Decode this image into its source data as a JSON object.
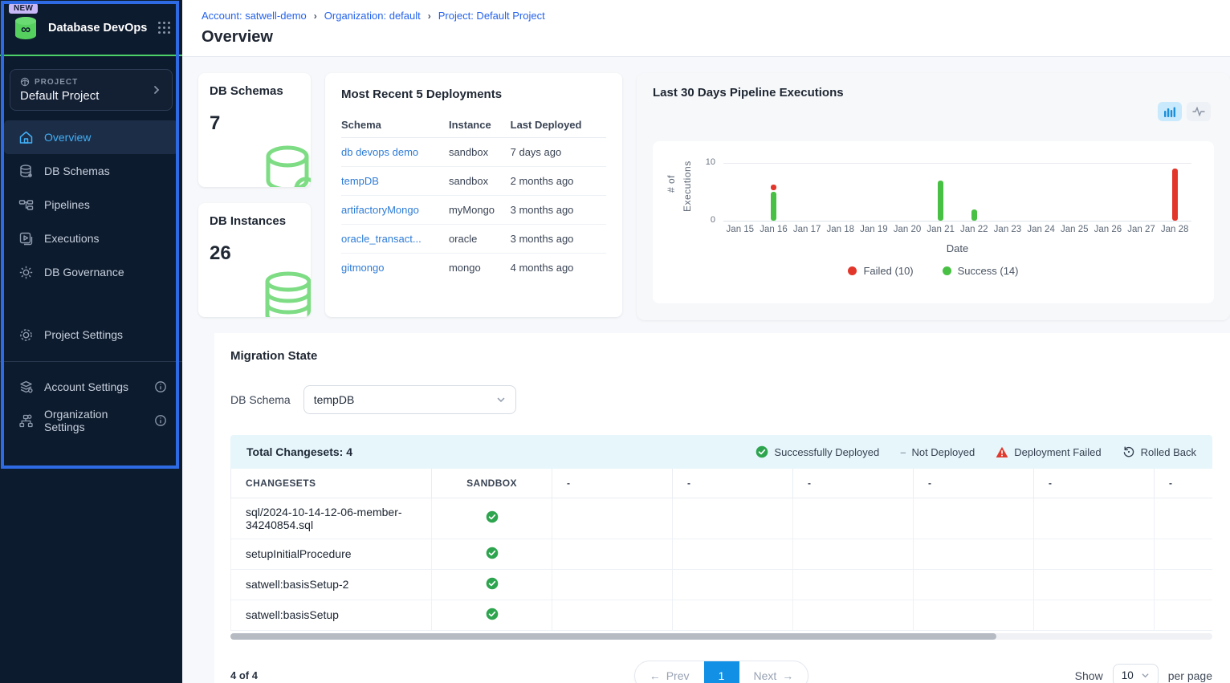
{
  "sidebar": {
    "badge": "NEW",
    "app_title": "Database DevOps",
    "project_label": "PROJECT",
    "project_name": "Default Project",
    "nav": [
      {
        "label": "Overview"
      },
      {
        "label": "DB Schemas"
      },
      {
        "label": "Pipelines"
      },
      {
        "label": "Executions"
      },
      {
        "label": "DB Governance"
      }
    ],
    "secondary": [
      {
        "label": "Project Settings"
      }
    ],
    "tertiary": [
      {
        "label": "Account Settings"
      },
      {
        "label": "Organization Settings"
      }
    ]
  },
  "breadcrumb": {
    "items": [
      "Account: satwell-demo",
      "Organization: default",
      "Project: Default Project"
    ]
  },
  "page_title": "Overview",
  "stats": [
    {
      "label": "DB Schemas",
      "value": "7"
    },
    {
      "label": "DB Instances",
      "value": "26"
    }
  ],
  "deployments": {
    "title": "Most Recent 5 Deployments",
    "columns": [
      "Schema",
      "Instance",
      "Last Deployed"
    ],
    "rows": [
      [
        "db devops demo",
        "sandbox",
        "7 days ago"
      ],
      [
        "tempDB",
        "sandbox",
        "2 months ago"
      ],
      [
        "artifactoryMongo",
        "myMongo",
        "3 months ago"
      ],
      [
        "oracle_transact...",
        "oracle",
        "3 months ago"
      ],
      [
        "gitmongo",
        "mongo",
        "4 months ago"
      ]
    ]
  },
  "chart_data": {
    "type": "bar",
    "title": "Last 30 Days Pipeline Executions",
    "x": [
      "Jan 15",
      "Jan 16",
      "Jan 17",
      "Jan 18",
      "Jan 19",
      "Jan 20",
      "Jan 21",
      "Jan 22",
      "Jan 23",
      "Jan 24",
      "Jan 25",
      "Jan 26",
      "Jan 27",
      "Jan 28"
    ],
    "series": [
      {
        "name": "Failed",
        "color": "#e2362b",
        "values": [
          0,
          1,
          0,
          0,
          0,
          0,
          0,
          0,
          0,
          0,
          0,
          0,
          0,
          9
        ]
      },
      {
        "name": "Success",
        "color": "#47c043",
        "values": [
          0,
          5,
          0,
          0,
          0,
          0,
          7,
          2,
          0,
          0,
          0,
          0,
          0,
          0
        ]
      }
    ],
    "stacked": true,
    "xlabel": "Date",
    "ylabel": "# of Executions",
    "ylim": [
      0,
      10
    ],
    "ytick_top": "10",
    "ytick_bottom": "0",
    "grid": "top-line-only",
    "legend_position": "bottom",
    "legend": [
      {
        "label": "Failed (10)",
        "color": "#e2362b"
      },
      {
        "label": "Success (14)",
        "color": "#47c043"
      }
    ]
  },
  "migration": {
    "title": "Migration State",
    "schema_label": "DB Schema",
    "schema_value": "tempDB",
    "total_label": "Total Changesets: 4",
    "legend": [
      {
        "label": "Successfully Deployed"
      },
      {
        "label": "Not Deployed"
      },
      {
        "label": "Deployment Failed"
      },
      {
        "label": "Rolled Back"
      }
    ],
    "columns": [
      "CHANGESETS",
      "SANDBOX",
      "-",
      "-",
      "-",
      "-",
      "-",
      "-"
    ],
    "rows": [
      {
        "name": "sql/2024-10-14-12-06-member-34240854.sql",
        "sandbox_status": "success"
      },
      {
        "name": "setupInitialProcedure",
        "sandbox_status": "success"
      },
      {
        "name": "satwell:basisSetup-2",
        "sandbox_status": "success"
      },
      {
        "name": "satwell:basisSetup",
        "sandbox_status": "success"
      }
    ]
  },
  "pagination": {
    "count_text": "4 of 4",
    "prev_label": "Prev",
    "page": "1",
    "next_label": "Next",
    "show_label": "Show",
    "per_page_value": "10",
    "per_page_suffix": "per page"
  }
}
